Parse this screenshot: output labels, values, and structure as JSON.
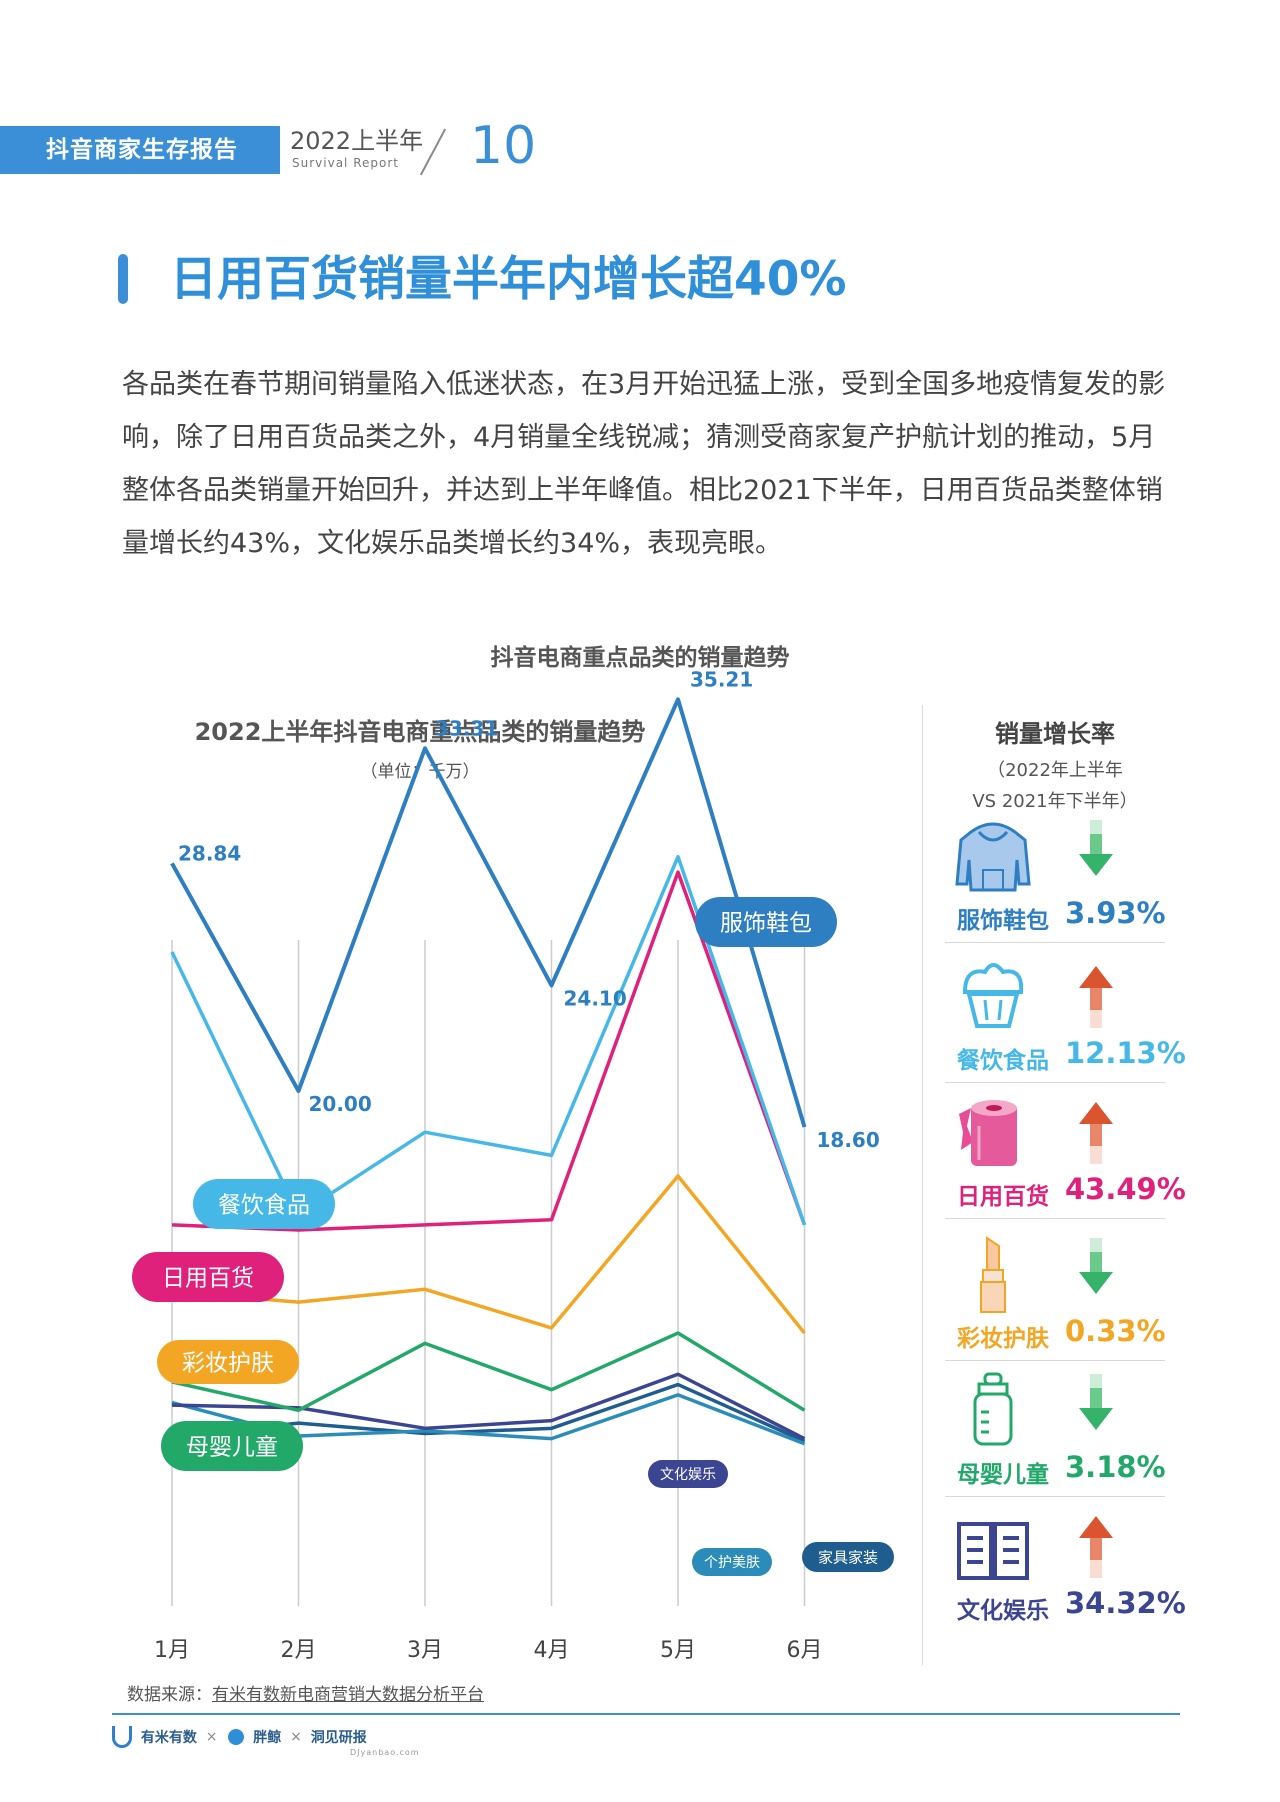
{
  "header": {
    "report_label": "抖音商家生存报告",
    "period": "2022上半年",
    "period_en": "Survival Report",
    "page_number": "10"
  },
  "headline": "日用百货销量半年内增长超40%",
  "paragraph": "各品类在春节期间销量陷入低迷状态，在3月开始迅猛上涨，受到全国多地疫情复发的影响，除了日用百货品类之外，4月销量全线锐减；猜测受商家复产护航计划的推动，5月整体各品类销量开始回升，并达到上半年峰值。相比2021下半年，日用百货品类整体销量增长约43%，文化娱乐品类增长约34%，表现亮眼。",
  "figure_title": "抖音电商重点品类的销量趋势",
  "chart_data": [
    {
      "type": "line",
      "title": "2022上半年抖音电商重点品类的销量趋势",
      "subtitle": "（单位：千万）",
      "categories": [
        "1月",
        "2月",
        "3月",
        "4月",
        "5月",
        "6月"
      ],
      "ylim": [
        0,
        40
      ],
      "grid": "vertical",
      "series": [
        {
          "name": "服饰鞋包",
          "color": "#2e7fc2",
          "values": [
            28.84,
            20.0,
            33.31,
            24.1,
            35.21,
            18.6
          ],
          "labels": [
            "28.84",
            "20.00",
            "33.31",
            "24.10",
            "35.21",
            "18.60"
          ]
        },
        {
          "name": "餐饮食品",
          "color": "#46b8e8",
          "values": [
            25.4,
            15.2,
            18.4,
            17.5,
            29.1,
            14.8
          ]
        },
        {
          "name": "日用百货",
          "color": "#e0217b",
          "values": [
            14.8,
            14.6,
            14.8,
            15.0,
            28.5,
            14.8
          ]
        },
        {
          "name": "彩妆护肤",
          "color": "#f2a623",
          "values": [
            12.2,
            11.8,
            12.3,
            10.8,
            16.7,
            10.6
          ]
        },
        {
          "name": "母婴儿童",
          "color": "#22a869",
          "values": [
            8.7,
            7.6,
            10.2,
            8.4,
            10.6,
            7.6
          ]
        },
        {
          "name": "文化娱乐",
          "color": "#3c4592",
          "values": [
            7.8,
            7.7,
            6.9,
            7.2,
            9.0,
            6.5
          ]
        },
        {
          "name": "个护美肤",
          "color": "#2b8cba",
          "values": [
            7.9,
            6.6,
            6.8,
            6.5,
            8.2,
            6.3
          ]
        },
        {
          "name": "家具家装",
          "color": "#1f5d8e",
          "values": [
            6.6,
            7.1,
            6.7,
            6.9,
            8.6,
            6.4
          ]
        }
      ]
    },
    {
      "type": "table",
      "title": "销量增长率",
      "subtitle": [
        "（2022年上半年",
        "VS  2021年下半年）"
      ],
      "items": [
        {
          "name": "服饰鞋包",
          "value": "3.93%",
          "trend": "down",
          "icon": "hoodie-icon",
          "color": "#2e7fc2"
        },
        {
          "name": "餐饮食品",
          "value": "12.13%",
          "trend": "up",
          "icon": "cupcake-icon",
          "color": "#46b8e8"
        },
        {
          "name": "日用百货",
          "value": "43.49%",
          "trend": "up",
          "icon": "toilet-paper-icon",
          "color": "#e0217b"
        },
        {
          "name": "彩妆护肤",
          "value": "0.33%",
          "trend": "down",
          "icon": "lipstick-icon",
          "color": "#f2a623"
        },
        {
          "name": "母婴儿童",
          "value": "3.18%",
          "trend": "down",
          "icon": "baby-bottle-icon",
          "color": "#22a869"
        },
        {
          "name": "文化娱乐",
          "value": "34.32%",
          "trend": "up",
          "icon": "book-icon",
          "color": "#3c4592"
        }
      ]
    }
  ],
  "source": {
    "prefix": "数据来源：",
    "text": "有米有数新电商营销大数据分析平台"
  },
  "footer": {
    "logo1": "有米有数",
    "logo2": "胖鲸",
    "logo3": "洞见研报",
    "logo3_url": "DJyanbao.com",
    "separator": "×"
  }
}
